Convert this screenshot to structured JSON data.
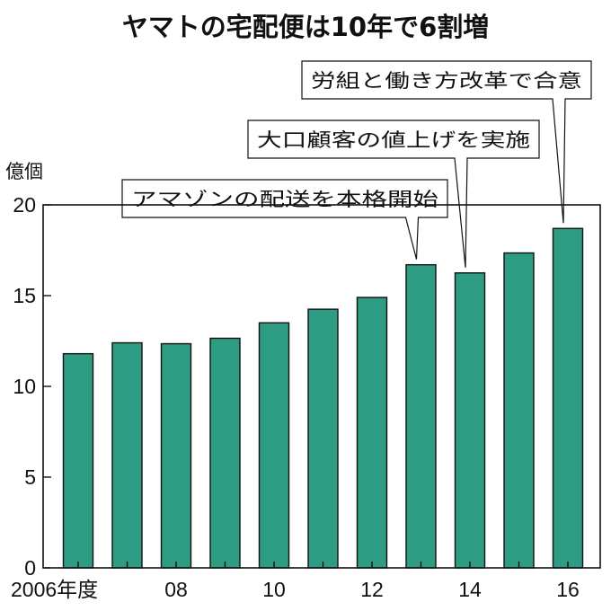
{
  "chart_data": {
    "type": "bar",
    "title": "ヤマトの宅配便は10年で6割増",
    "ylabel": "億個",
    "xlabel": "",
    "ylim": [
      0,
      20
    ],
    "yticks": [
      0,
      5,
      10,
      15,
      20
    ],
    "grid": false,
    "categories": [
      "2006",
      "2007",
      "2008",
      "2009",
      "2010",
      "2011",
      "2012",
      "2013",
      "2014",
      "2015",
      "2016"
    ],
    "values": [
      11.8,
      12.4,
      12.35,
      12.65,
      13.5,
      14.25,
      14.9,
      16.7,
      16.25,
      17.35,
      18.7
    ],
    "x_tick_labels": [
      {
        "category": "2006",
        "label": "2006年度"
      },
      {
        "category": "2008",
        "label": "08"
      },
      {
        "category": "2010",
        "label": "10"
      },
      {
        "category": "2012",
        "label": "12"
      },
      {
        "category": "2014",
        "label": "14"
      },
      {
        "category": "2016",
        "label": "16"
      }
    ],
    "annotations": [
      {
        "category": "2013",
        "text": "アマゾンの配送を本格開始"
      },
      {
        "category": "2014",
        "text": "大口顧客の値上げを実施"
      },
      {
        "category": "2016",
        "text": "労組と働き方改革で合意"
      }
    ],
    "colors": {
      "bar": "#2e9b83",
      "bar_stroke": "#111111",
      "axis": "#111111"
    }
  }
}
